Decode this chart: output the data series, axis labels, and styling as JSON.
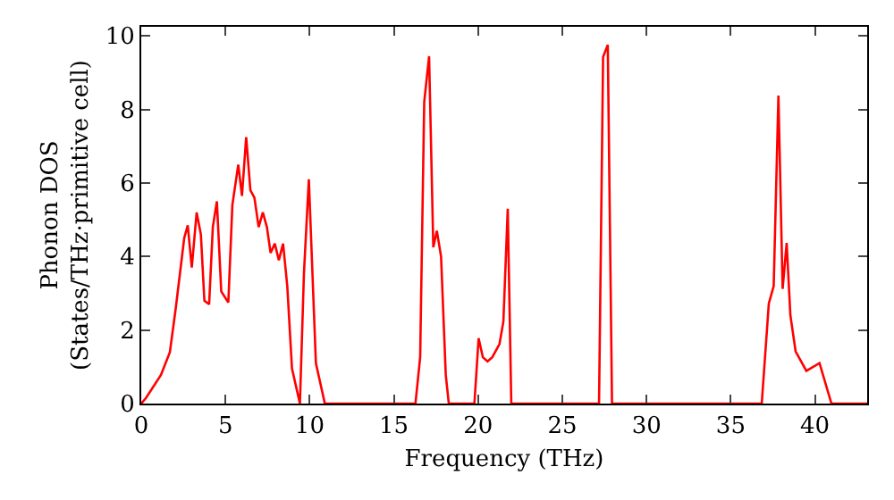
{
  "chart_data": {
    "type": "line",
    "xlabel": "Frequency (THz)",
    "ylabel": "Phonon DOS\n(States/THz·primitive cell)",
    "x": [
      0,
      0.28,
      1.17,
      1.7,
      2.05,
      2.55,
      2.76,
      3.0,
      3.29,
      3.54,
      3.75,
      4.03,
      4.25,
      4.49,
      4.75,
      5.17,
      5.41,
      5.76,
      5.98,
      6.23,
      6.48,
      6.72,
      6.97,
      7.22,
      7.46,
      7.68,
      7.93,
      8.17,
      8.42,
      8.67,
      8.95,
      9.42,
      9.66,
      9.95,
      10.37,
      10.9,
      16.28,
      16.56,
      16.8,
      17.09,
      17.34,
      17.55,
      17.8,
      18.08,
      18.26,
      19.78,
      20.03,
      20.28,
      20.56,
      20.84,
      21.27,
      21.5,
      21.76,
      21.97,
      27.18,
      27.42,
      27.7,
      27.95,
      36.84,
      37.26,
      37.55,
      37.83,
      38.08,
      38.32,
      38.54,
      38.85,
      39.49,
      40.27,
      40.98,
      43.1
    ],
    "series": [
      {
        "color": "#ff0000",
        "values": [
          0,
          0.15,
          0.78,
          1.4,
          2.6,
          4.5,
          4.85,
          3.7,
          5.2,
          4.6,
          2.8,
          2.7,
          4.8,
          5.5,
          3.05,
          2.75,
          5.4,
          6.5,
          5.65,
          7.25,
          5.8,
          5.6,
          4.8,
          5.2,
          4.8,
          4.1,
          4.35,
          3.9,
          4.35,
          3.2,
          0.95,
          0,
          3.55,
          6.1,
          1.1,
          0,
          0,
          1.26,
          8.2,
          9.45,
          4.25,
          4.7,
          4.0,
          0.78,
          0,
          0,
          1.78,
          1.26,
          1.15,
          1.26,
          1.62,
          2.23,
          5.3,
          0,
          0,
          9.43,
          9.76,
          0,
          0,
          2.72,
          3.2,
          8.38,
          3.12,
          4.37,
          2.4,
          1.42,
          0.89,
          1.1,
          0,
          0
        ]
      }
    ],
    "xlim": [
      0,
      43.1
    ],
    "ylim": [
      0,
      10.25
    ],
    "xticks": [
      0,
      5,
      10,
      15,
      20,
      25,
      30,
      35,
      40
    ],
    "yticks": [
      0,
      2,
      4,
      6,
      8,
      10
    ],
    "grid": false,
    "line_style": "solid",
    "marker": "none"
  }
}
